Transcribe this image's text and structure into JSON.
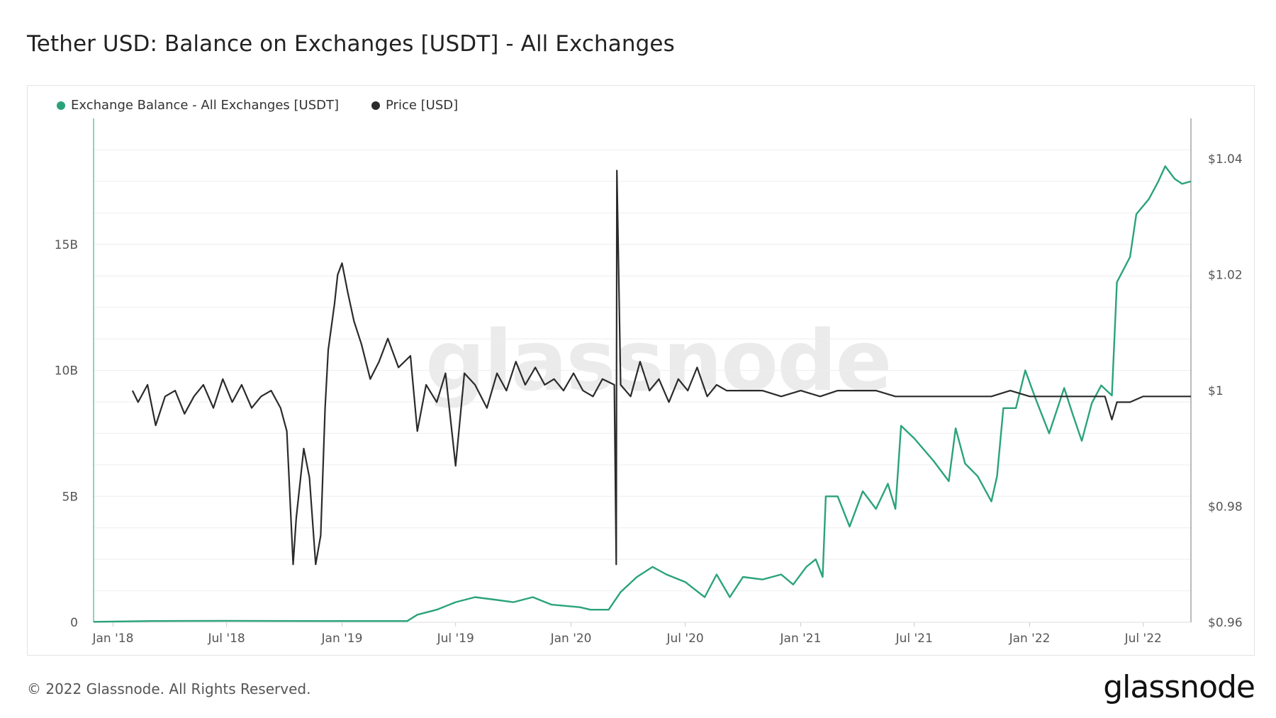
{
  "title": "Tether USD: Balance on Exchanges [USDT] - All Exchanges",
  "footer": "© 2022 Glassnode. All Rights Reserved.",
  "logo": "glassnode",
  "watermark": "glassnode",
  "colors": {
    "balance": "#2aa37a",
    "price": "#2b2b2b",
    "grid": "#eeeeee",
    "axis": "#555555"
  },
  "chart_data": {
    "type": "line",
    "title": "Tether USD: Balance on Exchanges [USDT] - All Exchanges",
    "legend_position": "top-left",
    "grid": true,
    "x_ticks": [
      "Jan '18",
      "Jul '18",
      "Jan '19",
      "Jul '19",
      "Jan '20",
      "Jul '20",
      "Jan '21",
      "Jul '21",
      "Jan '22",
      "Jul '22"
    ],
    "x_range": [
      "2017-12-01",
      "2022-09-15"
    ],
    "y_left": {
      "ticks": [
        "0",
        "5B",
        "10B",
        "15B"
      ],
      "values": [
        0,
        5,
        10,
        15
      ],
      "range": [
        0,
        20
      ],
      "unit": "B"
    },
    "y_right": {
      "ticks": [
        "$0.96",
        "$0.98",
        "$1",
        "$1.02",
        "$1.04"
      ],
      "values": [
        0.96,
        0.98,
        1.0,
        1.02,
        1.04
      ],
      "range": [
        0.96,
        1.047
      ]
    },
    "series": [
      {
        "name": "Exchange Balance - All Exchanges [USDT]",
        "axis": "left",
        "points": [
          [
            "2017-12-01",
            0.02
          ],
          [
            "2018-03-01",
            0.05
          ],
          [
            "2018-07-01",
            0.06
          ],
          [
            "2018-12-01",
            0.05
          ],
          [
            "2019-04-15",
            0.05
          ],
          [
            "2019-05-01",
            0.3
          ],
          [
            "2019-06-01",
            0.5
          ],
          [
            "2019-07-01",
            0.8
          ],
          [
            "2019-08-01",
            1.0
          ],
          [
            "2019-09-01",
            0.9
          ],
          [
            "2019-10-01",
            0.8
          ],
          [
            "2019-11-01",
            1.0
          ],
          [
            "2019-12-01",
            0.7
          ],
          [
            "2020-01-15",
            0.6
          ],
          [
            "2020-02-01",
            0.5
          ],
          [
            "2020-03-01",
            0.5
          ],
          [
            "2020-03-20",
            1.2
          ],
          [
            "2020-04-15",
            1.8
          ],
          [
            "2020-05-10",
            2.2
          ],
          [
            "2020-06-01",
            1.9
          ],
          [
            "2020-07-01",
            1.6
          ],
          [
            "2020-08-01",
            1.0
          ],
          [
            "2020-08-20",
            1.9
          ],
          [
            "2020-09-10",
            1.0
          ],
          [
            "2020-10-01",
            1.8
          ],
          [
            "2020-11-01",
            1.7
          ],
          [
            "2020-12-01",
            1.9
          ],
          [
            "2020-12-20",
            1.5
          ],
          [
            "2021-01-10",
            2.2
          ],
          [
            "2021-01-25",
            2.5
          ],
          [
            "2021-02-05",
            1.8
          ],
          [
            "2021-02-10",
            5.0
          ],
          [
            "2021-03-01",
            5.0
          ],
          [
            "2021-03-20",
            3.8
          ],
          [
            "2021-04-10",
            5.2
          ],
          [
            "2021-05-01",
            4.5
          ],
          [
            "2021-05-20",
            5.5
          ],
          [
            "2021-06-01",
            4.5
          ],
          [
            "2021-06-10",
            7.8
          ],
          [
            "2021-07-01",
            7.3
          ],
          [
            "2021-08-01",
            6.4
          ],
          [
            "2021-08-25",
            5.6
          ],
          [
            "2021-09-05",
            7.7
          ],
          [
            "2021-09-20",
            6.3
          ],
          [
            "2021-10-10",
            5.8
          ],
          [
            "2021-11-01",
            4.8
          ],
          [
            "2021-11-10",
            5.8
          ],
          [
            "2021-11-20",
            8.5
          ],
          [
            "2021-12-10",
            8.5
          ],
          [
            "2021-12-25",
            10.0
          ],
          [
            "2022-01-10",
            8.9
          ],
          [
            "2022-02-01",
            7.5
          ],
          [
            "2022-02-25",
            9.3
          ],
          [
            "2022-03-10",
            8.3
          ],
          [
            "2022-03-25",
            7.2
          ],
          [
            "2022-04-10",
            8.7
          ],
          [
            "2022-04-25",
            9.4
          ],
          [
            "2022-05-12",
            9.0
          ],
          [
            "2022-05-20",
            13.5
          ],
          [
            "2022-06-10",
            14.5
          ],
          [
            "2022-06-20",
            16.2
          ],
          [
            "2022-07-10",
            16.8
          ],
          [
            "2022-07-25",
            17.5
          ],
          [
            "2022-08-05",
            18.1
          ],
          [
            "2022-08-20",
            17.6
          ],
          [
            "2022-09-01",
            17.4
          ],
          [
            "2022-09-15",
            17.5
          ]
        ]
      },
      {
        "name": "Price [USD]",
        "axis": "right",
        "points": [
          [
            "2018-02-01",
            1.0
          ],
          [
            "2018-02-10",
            0.998
          ],
          [
            "2018-02-25",
            1.001
          ],
          [
            "2018-03-10",
            0.994
          ],
          [
            "2018-03-25",
            0.999
          ],
          [
            "2018-04-10",
            1.0
          ],
          [
            "2018-04-25",
            0.996
          ],
          [
            "2018-05-10",
            0.999
          ],
          [
            "2018-05-25",
            1.001
          ],
          [
            "2018-06-10",
            0.997
          ],
          [
            "2018-06-25",
            1.002
          ],
          [
            "2018-07-10",
            0.998
          ],
          [
            "2018-07-25",
            1.001
          ],
          [
            "2018-08-10",
            0.997
          ],
          [
            "2018-08-25",
            0.999
          ],
          [
            "2018-09-10",
            1.0
          ],
          [
            "2018-09-25",
            0.997
          ],
          [
            "2018-10-05",
            0.993
          ],
          [
            "2018-10-15",
            0.97
          ],
          [
            "2018-10-20",
            0.978
          ],
          [
            "2018-11-01",
            0.99
          ],
          [
            "2018-11-10",
            0.985
          ],
          [
            "2018-11-20",
            0.97
          ],
          [
            "2018-11-28",
            0.975
          ],
          [
            "2018-12-05",
            0.997
          ],
          [
            "2018-12-10",
            1.007
          ],
          [
            "2018-12-20",
            1.015
          ],
          [
            "2018-12-25",
            1.02
          ],
          [
            "2019-01-01",
            1.022
          ],
          [
            "2019-01-10",
            1.017
          ],
          [
            "2019-01-20",
            1.012
          ],
          [
            "2019-02-01",
            1.008
          ],
          [
            "2019-02-15",
            1.002
          ],
          [
            "2019-03-01",
            1.005
          ],
          [
            "2019-03-15",
            1.009
          ],
          [
            "2019-04-01",
            1.004
          ],
          [
            "2019-04-20",
            1.006
          ],
          [
            "2019-05-01",
            0.993
          ],
          [
            "2019-05-15",
            1.001
          ],
          [
            "2019-06-01",
            0.998
          ],
          [
            "2019-06-15",
            1.003
          ],
          [
            "2019-07-01",
            0.987
          ],
          [
            "2019-07-15",
            1.003
          ],
          [
            "2019-08-01",
            1.001
          ],
          [
            "2019-08-20",
            0.997
          ],
          [
            "2019-09-05",
            1.003
          ],
          [
            "2019-09-20",
            1.0
          ],
          [
            "2019-10-05",
            1.005
          ],
          [
            "2019-10-20",
            1.001
          ],
          [
            "2019-11-05",
            1.004
          ],
          [
            "2019-11-20",
            1.001
          ],
          [
            "2019-12-05",
            1.002
          ],
          [
            "2019-12-20",
            1.0
          ],
          [
            "2020-01-05",
            1.003
          ],
          [
            "2020-01-20",
            1.0
          ],
          [
            "2020-02-05",
            0.999
          ],
          [
            "2020-02-20",
            1.002
          ],
          [
            "2020-03-10",
            1.001
          ],
          [
            "2020-03-13",
            0.97
          ],
          [
            "2020-03-14",
            1.038
          ],
          [
            "2020-03-20",
            1.001
          ],
          [
            "2020-04-05",
            0.999
          ],
          [
            "2020-04-20",
            1.005
          ],
          [
            "2020-05-05",
            1.0
          ],
          [
            "2020-05-20",
            1.002
          ],
          [
            "2020-06-05",
            0.998
          ],
          [
            "2020-06-20",
            1.002
          ],
          [
            "2020-07-05",
            1.0
          ],
          [
            "2020-07-20",
            1.004
          ],
          [
            "2020-08-05",
            0.999
          ],
          [
            "2020-08-20",
            1.001
          ],
          [
            "2020-09-05",
            1.0
          ],
          [
            "2020-10-01",
            1.0
          ],
          [
            "2020-11-01",
            1.0
          ],
          [
            "2020-12-01",
            0.999
          ],
          [
            "2021-01-01",
            1.0
          ],
          [
            "2021-02-01",
            0.999
          ],
          [
            "2021-03-01",
            1.0
          ],
          [
            "2021-04-01",
            1.0
          ],
          [
            "2021-05-01",
            1.0
          ],
          [
            "2021-06-01",
            0.999
          ],
          [
            "2021-07-01",
            0.999
          ],
          [
            "2021-08-01",
            0.999
          ],
          [
            "2021-09-01",
            0.999
          ],
          [
            "2021-10-01",
            0.999
          ],
          [
            "2021-11-01",
            0.999
          ],
          [
            "2021-12-01",
            1.0
          ],
          [
            "2022-01-01",
            0.999
          ],
          [
            "2022-02-01",
            0.999
          ],
          [
            "2022-03-01",
            0.999
          ],
          [
            "2022-04-01",
            0.999
          ],
          [
            "2022-05-01",
            0.999
          ],
          [
            "2022-05-12",
            0.995
          ],
          [
            "2022-05-20",
            0.998
          ],
          [
            "2022-06-10",
            0.998
          ],
          [
            "2022-07-01",
            0.999
          ],
          [
            "2022-08-01",
            0.999
          ],
          [
            "2022-09-15",
            0.999
          ]
        ]
      }
    ]
  }
}
